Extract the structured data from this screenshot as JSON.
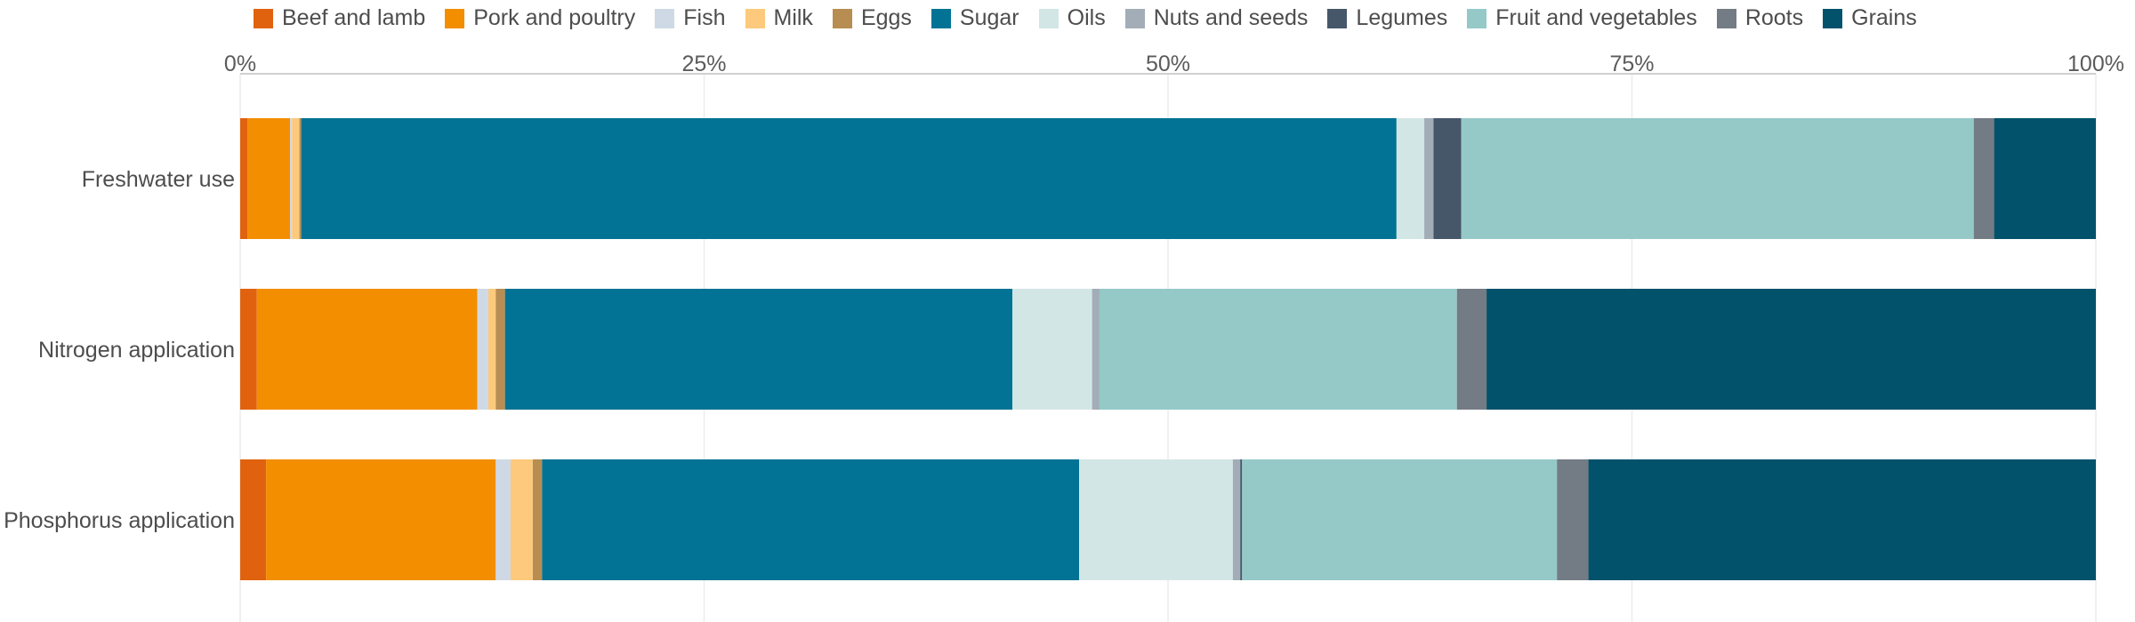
{
  "chart_data": {
    "type": "bar",
    "orientation": "horizontal",
    "stacked": true,
    "normalized": true,
    "categories": [
      "Freshwater use",
      "Nitrogen application",
      "Phosphorus application"
    ],
    "xlim": [
      0,
      100
    ],
    "x_ticks": [
      "0%",
      "25%",
      "50%",
      "75%",
      "100%"
    ],
    "grid": true,
    "legend_position": "top",
    "series": [
      {
        "name": "Beef and lamb",
        "color": "#e0620f",
        "values": [
          0.4,
          0.9,
          1.4
        ]
      },
      {
        "name": "Pork and poultry",
        "color": "#f28e00",
        "values": [
          2.3,
          11.9,
          12.4
        ]
      },
      {
        "name": "Fish",
        "color": "#ced9e5",
        "values": [
          0.1,
          0.6,
          0.8
        ]
      },
      {
        "name": "Milk",
        "color": "#fdc97c",
        "values": [
          0.4,
          0.4,
          1.2
        ]
      },
      {
        "name": "Eggs",
        "color": "#b88d51",
        "values": [
          0.1,
          0.5,
          0.5
        ]
      },
      {
        "name": "Sugar",
        "color": "#027394",
        "values": [
          59.2,
          27.4,
          29.0
        ]
      },
      {
        "name": "Oils",
        "color": "#d2e6e5",
        "values": [
          1.5,
          4.3,
          8.3
        ]
      },
      {
        "name": "Nuts and seeds",
        "color": "#a2adb8",
        "values": [
          0.5,
          0.4,
          0.4
        ]
      },
      {
        "name": "Legumes",
        "color": "#46576a",
        "values": [
          1.5,
          0.0,
          0.1
        ]
      },
      {
        "name": "Fruit and vegetables",
        "color": "#95c9c8",
        "values": [
          27.7,
          19.3,
          17.0
        ]
      },
      {
        "name": "Roots",
        "color": "#737b85",
        "values": [
          1.1,
          1.6,
          1.7
        ]
      },
      {
        "name": "Grains",
        "color": "#02526c",
        "values": [
          5.5,
          32.9,
          27.4
        ]
      }
    ]
  }
}
